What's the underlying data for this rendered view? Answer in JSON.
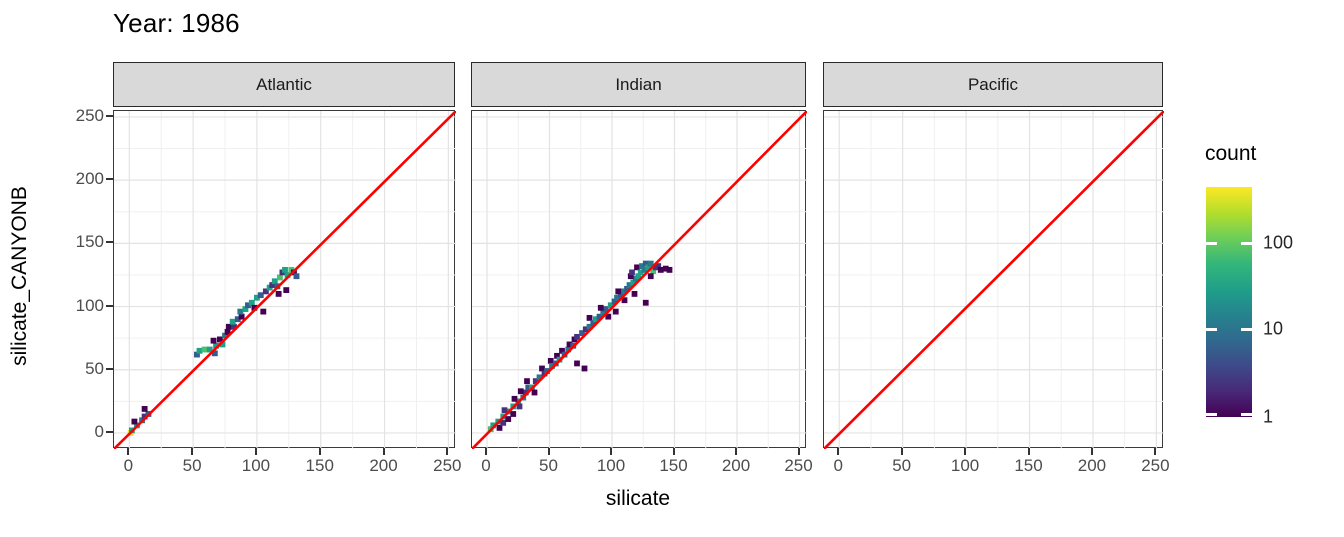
{
  "title": "Year: 1986",
  "axes": {
    "x_title": "silicate",
    "y_title": "silicate_CANYONB"
  },
  "legend": {
    "title": "count",
    "ticks": [
      "100",
      "10",
      "1"
    ]
  },
  "colors": {
    "reference_line": "#FF0000",
    "strip_background": "#d9d9d9",
    "panel_background": "#ffffff",
    "panel_border": "#3a3a3a",
    "grid_major": "#e3e3e3",
    "grid_minor": "#f0f0f0",
    "tick_label": "#4d4d4d",
    "viridis_bottom": "#440154",
    "viridis_top": "#fde725"
  },
  "chart_data": {
    "type": "heatmap",
    "subtype": "faceted 2d-bin scatter (geom_bin2d) with y=x reference line",
    "title": "Year: 1986",
    "xlabel": "silicate",
    "ylabel": "silicate_CANYONB",
    "xlim": [
      -12,
      256
    ],
    "ylim": [
      -12.7,
      254.7
    ],
    "x_ticks": [
      0,
      50,
      100,
      150,
      200,
      250
    ],
    "y_ticks": [
      0,
      50,
      100,
      150,
      200,
      250
    ],
    "x_minor": [
      25,
      75,
      125,
      175,
      225
    ],
    "y_minor": [
      25,
      75,
      125,
      175,
      225
    ],
    "bin_size": 4.6,
    "grid": true,
    "legend_position": "right",
    "color_scale": {
      "name": "viridis",
      "transform": "log10",
      "domain": [
        1,
        440
      ],
      "legend_title": "count",
      "legend_ticks": [
        1,
        10,
        100
      ]
    },
    "reference_line": {
      "type": "y=x",
      "color": "#FF0000"
    },
    "palette": {
      "p1": "#440154",
      "p2": "#46327e",
      "p3": "#365c8d",
      "p4": "#2a788e",
      "p5": "#1fa187",
      "p6": "#4ac16d",
      "y": "#fde725"
    },
    "facets": [
      {
        "name": "Atlantic",
        "bins": [
          [
            1,
            0,
            "y"
          ],
          [
            2,
            2,
            "p5"
          ],
          [
            6,
            6,
            "p5"
          ],
          [
            4,
            9,
            "p1"
          ],
          [
            10,
            10,
            "p4"
          ],
          [
            12,
            13,
            "p2"
          ],
          [
            15,
            15,
            "p3"
          ],
          [
            12,
            19,
            "p1"
          ],
          [
            53,
            62,
            "p3"
          ],
          [
            55,
            65,
            "p5"
          ],
          [
            59,
            66,
            "p6"
          ],
          [
            63,
            66,
            "p5"
          ],
          [
            67,
            63,
            "p3"
          ],
          [
            68,
            69,
            "p5"
          ],
          [
            66,
            73,
            "p1"
          ],
          [
            71,
            74,
            "p1"
          ],
          [
            73,
            70,
            "p5"
          ],
          [
            75,
            77,
            "p4"
          ],
          [
            77,
            80,
            "p1"
          ],
          [
            78,
            84,
            "p1"
          ],
          [
            82,
            84,
            "p2"
          ],
          [
            81,
            88,
            "p5"
          ],
          [
            85,
            90,
            "p3"
          ],
          [
            88,
            92,
            "p1"
          ],
          [
            87,
            96,
            "p4"
          ],
          [
            91,
            98,
            "p5"
          ],
          [
            93,
            101,
            "p3"
          ],
          [
            96,
            103,
            "p5"
          ],
          [
            98,
            99,
            "p1"
          ],
          [
            100,
            107,
            "p5"
          ],
          [
            103,
            109,
            "p3"
          ],
          [
            105,
            96,
            "p1"
          ],
          [
            107,
            112,
            "p2"
          ],
          [
            110,
            115,
            "p5"
          ],
          [
            112,
            117,
            "p2"
          ],
          [
            114,
            120,
            "p5"
          ],
          [
            116,
            116,
            "p3"
          ],
          [
            117,
            110,
            "p1"
          ],
          [
            118,
            123,
            "p6"
          ],
          [
            120,
            127,
            "p2"
          ],
          [
            122,
            129,
            "p5"
          ],
          [
            124,
            125,
            "p5"
          ],
          [
            127,
            129,
            "p6"
          ],
          [
            129,
            127,
            "p1"
          ],
          [
            123,
            113,
            "p1"
          ],
          [
            131,
            124,
            "p3"
          ]
        ]
      },
      {
        "name": "Indian",
        "bins": [
          [
            3,
            3,
            "p6"
          ],
          [
            5,
            6,
            "p5"
          ],
          [
            9,
            9,
            "p5"
          ],
          [
            10,
            4,
            "p1"
          ],
          [
            13,
            8,
            "p2"
          ],
          [
            13,
            13,
            "p5"
          ],
          [
            17,
            11,
            "p1"
          ],
          [
            17,
            17,
            "p5"
          ],
          [
            14,
            18,
            "p2"
          ],
          [
            21,
            15,
            "p1"
          ],
          [
            21,
            21,
            "p5"
          ],
          [
            25,
            25,
            "p5"
          ],
          [
            26,
            21,
            "p2"
          ],
          [
            22,
            27,
            "p1"
          ],
          [
            29,
            28,
            "p4"
          ],
          [
            31,
            32,
            "p2"
          ],
          [
            27,
            33,
            "p1"
          ],
          [
            33,
            36,
            "p3"
          ],
          [
            32,
            41,
            "p1"
          ],
          [
            36,
            36,
            "p5"
          ],
          [
            38,
            32,
            "p1"
          ],
          [
            39,
            41,
            "p2"
          ],
          [
            42,
            44,
            "p4"
          ],
          [
            44,
            51,
            "p1"
          ],
          [
            46,
            47,
            "p2"
          ],
          [
            48,
            49,
            "p3"
          ],
          [
            51,
            57,
            "p1"
          ],
          [
            52,
            53,
            "p4"
          ],
          [
            55,
            55,
            "p3"
          ],
          [
            56,
            61,
            "p1"
          ],
          [
            58,
            58,
            "p5"
          ],
          [
            60,
            65,
            "p1"
          ],
          [
            62,
            62,
            "p3"
          ],
          [
            65,
            66,
            "p4"
          ],
          [
            66,
            70,
            "p1"
          ],
          [
            69,
            69,
            "p3"
          ],
          [
            70,
            74,
            "p1"
          ],
          [
            72,
            55,
            "p1"
          ],
          [
            78,
            51,
            "p1"
          ],
          [
            72,
            76,
            "p2"
          ],
          [
            76,
            79,
            "p3"
          ],
          [
            79,
            82,
            "p2"
          ],
          [
            82,
            84,
            "p4"
          ],
          [
            82,
            91,
            "p1"
          ],
          [
            85,
            87,
            "p3"
          ],
          [
            87,
            90,
            "p5"
          ],
          [
            90,
            92,
            "p3"
          ],
          [
            93,
            95,
            "p4"
          ],
          [
            95,
            98,
            "p3"
          ],
          [
            91,
            99,
            "p1"
          ],
          [
            97,
            92,
            "p1"
          ],
          [
            99,
            101,
            "p5"
          ],
          [
            102,
            104,
            "p3"
          ],
          [
            103,
            96,
            "p1"
          ],
          [
            104,
            107,
            "p4"
          ],
          [
            107,
            109,
            "p3"
          ],
          [
            109,
            112,
            "p4"
          ],
          [
            112,
            114,
            "p3"
          ],
          [
            105,
            112,
            "p1"
          ],
          [
            110,
            105,
            "p1"
          ],
          [
            114,
            117,
            "p4"
          ],
          [
            117,
            119,
            "p5"
          ],
          [
            119,
            122,
            "p4"
          ],
          [
            115,
            124,
            "p1"
          ],
          [
            118,
            110,
            "p1"
          ],
          [
            121,
            124,
            "p5"
          ],
          [
            116,
            127,
            "p2"
          ],
          [
            120,
            131,
            "p1"
          ],
          [
            123,
            127,
            "p5"
          ],
          [
            126,
            129,
            "p4"
          ],
          [
            124,
            132,
            "p4"
          ],
          [
            127,
            134,
            "p3"
          ],
          [
            129,
            131,
            "p5"
          ],
          [
            131,
            134,
            "p4"
          ],
          [
            133,
            128,
            "p6"
          ],
          [
            135,
            131,
            "p2"
          ],
          [
            137,
            132,
            "p2"
          ],
          [
            139,
            129,
            "p1"
          ],
          [
            143,
            130,
            "p1"
          ],
          [
            146,
            129,
            "p1"
          ],
          [
            131,
            124,
            "p1"
          ],
          [
            127,
            103,
            "p1"
          ]
        ]
      },
      {
        "name": "Pacific",
        "bins": []
      }
    ]
  }
}
